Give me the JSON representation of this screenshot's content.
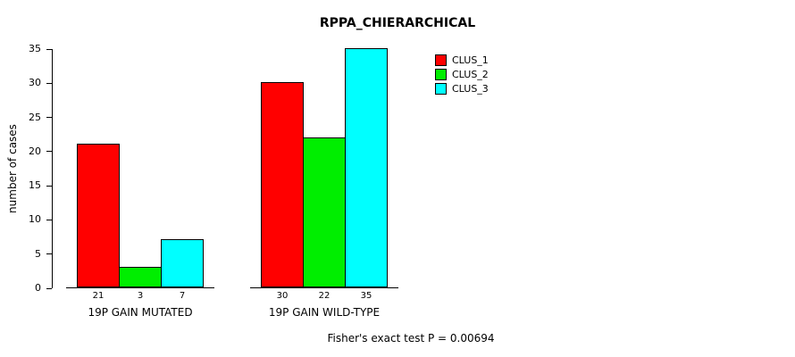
{
  "chart_data": {
    "type": "bar",
    "title": "RPPA_CHIERARCHICAL",
    "xlabel": "",
    "ylabel": "number of cases",
    "ylim": [
      0,
      35
    ],
    "yticks": [
      0,
      5,
      10,
      15,
      20,
      25,
      30,
      35
    ],
    "categories": [
      "19P GAIN MUTATED",
      "19P GAIN WILD-TYPE"
    ],
    "series": [
      {
        "name": "CLUS_1",
        "color": "#ff0000",
        "values": [
          21,
          30
        ]
      },
      {
        "name": "CLUS_2",
        "color": "#00ee00",
        "values": [
          3,
          22
        ]
      },
      {
        "name": "CLUS_3",
        "color": "#00ffff",
        "values": [
          7,
          35
        ]
      }
    ],
    "bar_value_labels": [
      [
        21,
        3,
        7
      ],
      [
        30,
        22,
        35
      ]
    ],
    "legend_position": "top-right",
    "grid": false,
    "annotation": "Fisher's exact test P = 0.00694"
  }
}
